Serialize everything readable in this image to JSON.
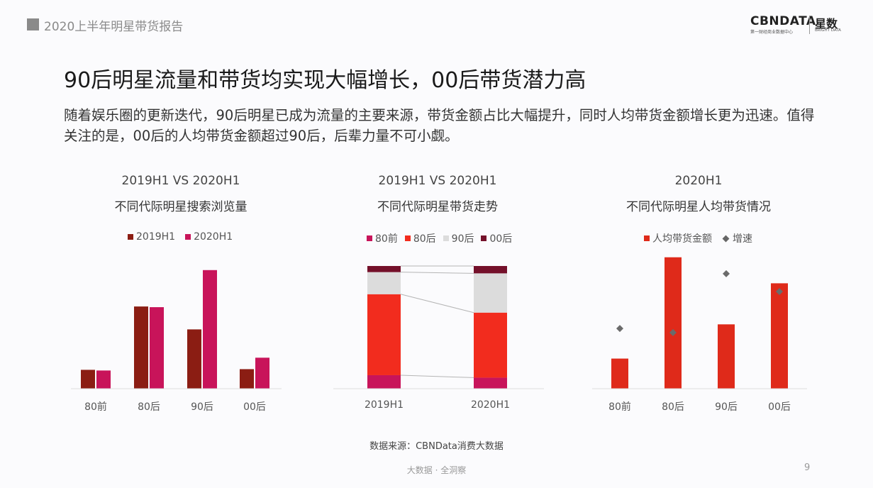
{
  "header": {
    "report_title": "2020上半年明星带货报告"
  },
  "logo": {
    "cbn": "CBNDATA",
    "cbn_sub": "第一财经商业数据中心",
    "xs": "星数",
    "xs_sub": "BRIGHT DATA"
  },
  "title": "90后明星流量和带货均实现大幅增长，00后带货潜力高",
  "description": "随着娱乐圈的更新迭代，90后明星已成为流量的主要来源，带货金额占比大幅提升，同时人均带货金额增长更为迅速。值得关注的是，00后的人均带货金额超过90后，后辈力量不可小觑。",
  "panels": [
    {
      "title1": "2019H1 VS 2020H1",
      "title2": "不同代际明星搜索浏览量"
    },
    {
      "title1": "2019H1 VS 2020H1",
      "title2": "不同代际明星带货走势"
    },
    {
      "title1": "2020H1",
      "title2": "不同代际明星人均带货情况"
    }
  ],
  "colors": {
    "dark_red": "#8b1d13",
    "magenta": "#c8145a",
    "red": "#f22c1e",
    "light_grey": "#dcdcdc",
    "maroon": "#74102a",
    "bar_red": "#df2a1a",
    "marker_grey": "#6b6b6b"
  },
  "chart_data": [
    {
      "type": "bar",
      "categories": [
        "80前",
        "80后",
        "90后",
        "00后"
      ],
      "series": [
        {
          "name": "2019H1",
          "values": [
            14,
            61,
            44,
            14.5
          ]
        },
        {
          "name": "2020H1",
          "values": [
            13.5,
            60.5,
            88,
            23
          ]
        }
      ],
      "ylim": [
        0,
        100
      ]
    },
    {
      "type": "bar",
      "stacked": true,
      "categories": [
        "2019H1",
        "2020H1"
      ],
      "series": [
        {
          "name": "80前",
          "values": [
            11,
            9
          ]
        },
        {
          "name": "80后",
          "values": [
            66,
            53
          ]
        },
        {
          "name": "90后",
          "values": [
            18,
            32
          ]
        },
        {
          "name": "00后",
          "values": [
            5,
            6
          ]
        }
      ],
      "ylim": [
        0,
        100
      ]
    },
    {
      "type": "bar",
      "categories": [
        "80前",
        "80后",
        "90后",
        "00后"
      ],
      "series": [
        {
          "name": "人均带货金额",
          "values": [
            22,
            96,
            47,
            77
          ]
        },
        {
          "name": "增速",
          "type": "scatter",
          "values": [
            44,
            41,
            84,
            71
          ]
        }
      ],
      "ylim": [
        0,
        100
      ]
    }
  ],
  "source": "数据来源：CBNData消费大数据",
  "footer": "大数据 · 全洞察",
  "page_number": "9"
}
